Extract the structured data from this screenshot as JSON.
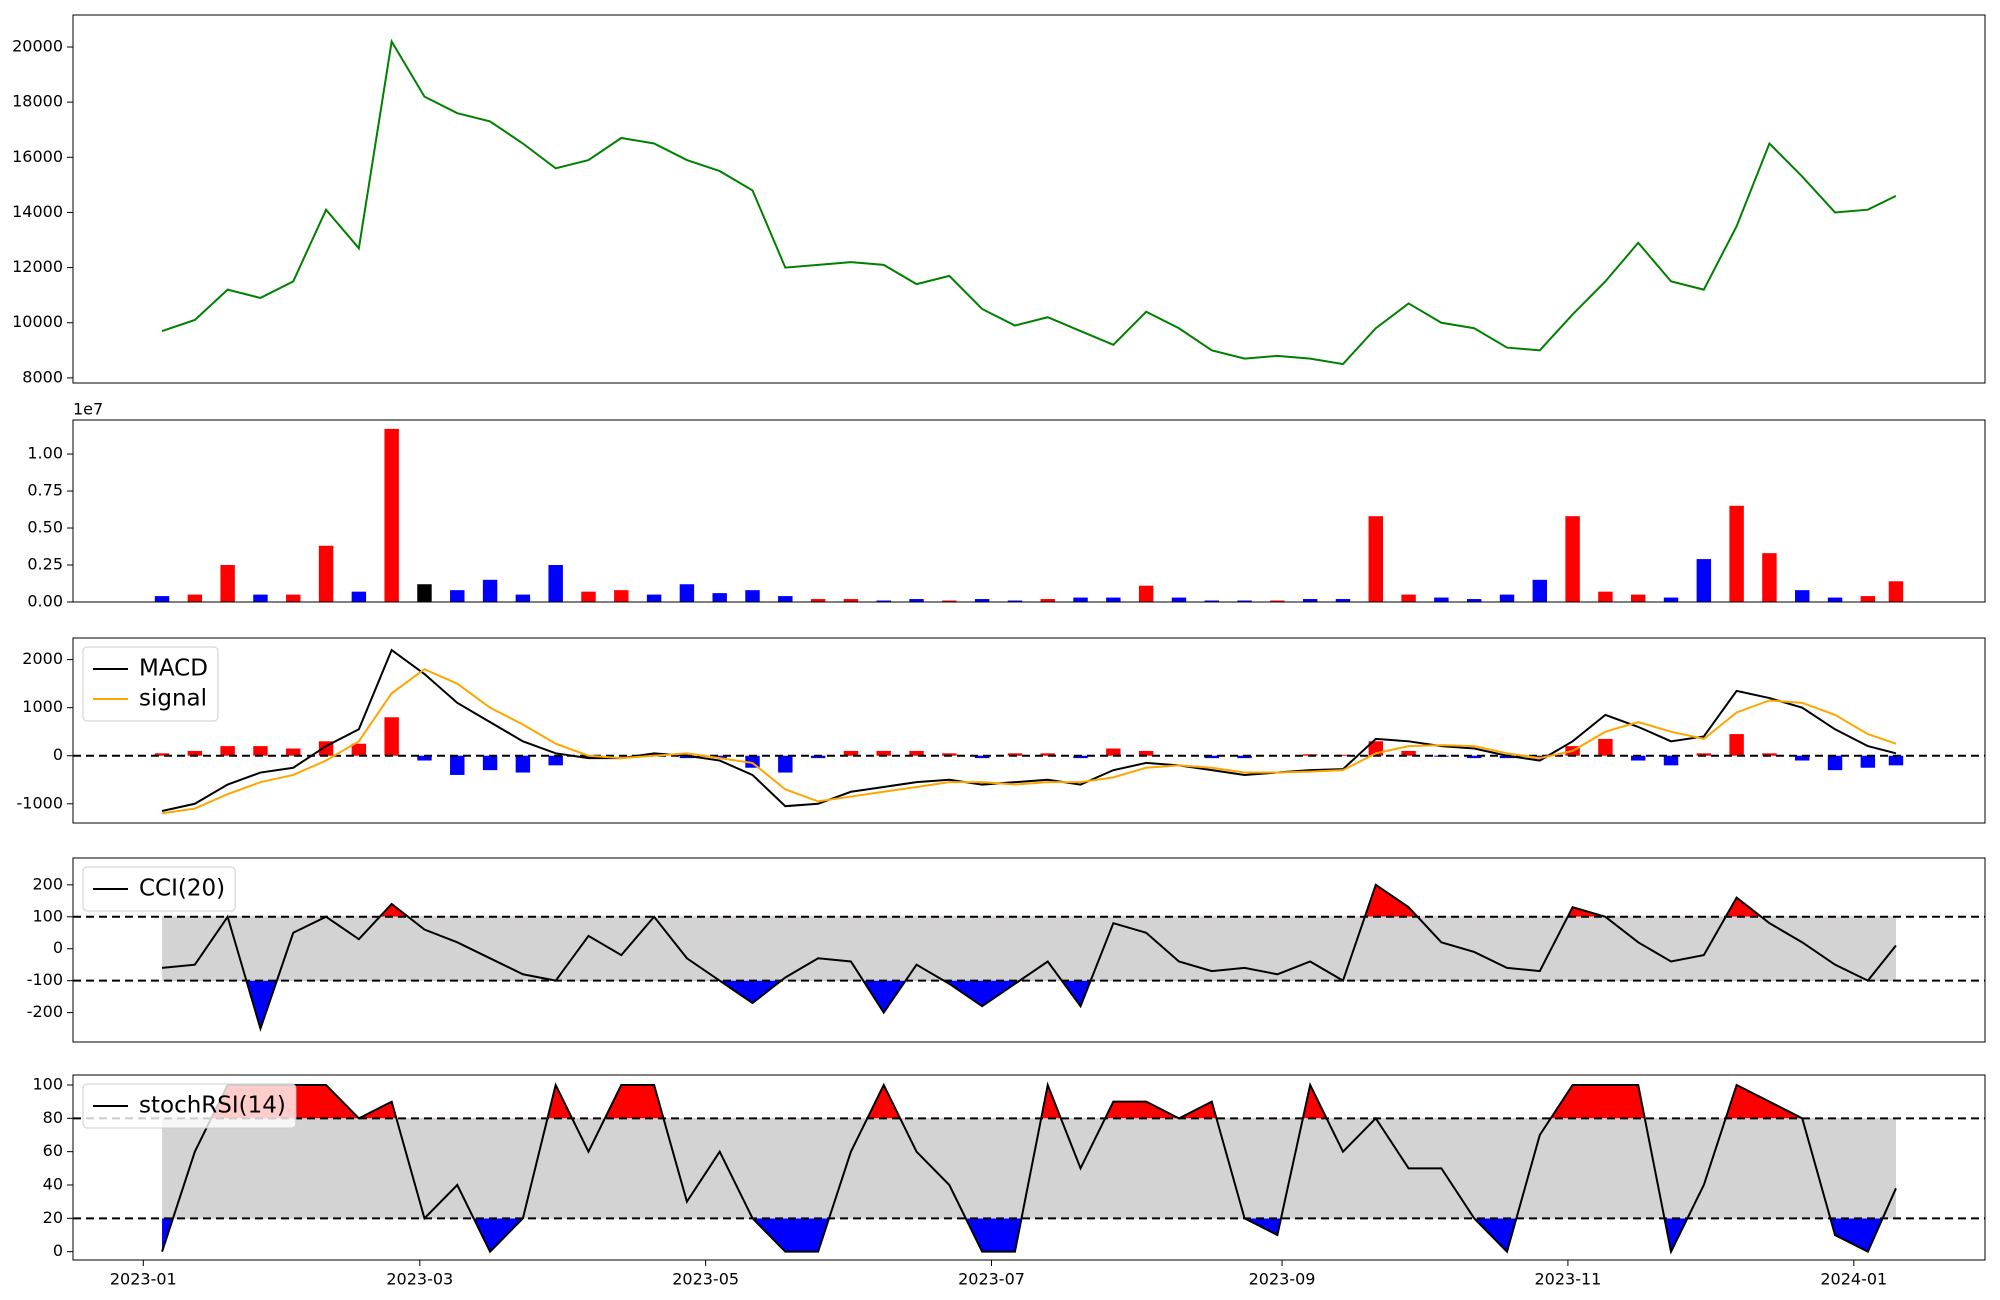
{
  "chart_data": [
    {
      "type": "line",
      "x": [
        "2023-01-05",
        "2023-01-12",
        "2023-01-19",
        "2023-01-26",
        "2023-02-02",
        "2023-02-09",
        "2023-02-16",
        "2023-02-23",
        "2023-03-02",
        "2023-03-09",
        "2023-03-16",
        "2023-03-23",
        "2023-03-30",
        "2023-04-06",
        "2023-04-13",
        "2023-04-20",
        "2023-04-27",
        "2023-05-04",
        "2023-05-11",
        "2023-05-18",
        "2023-05-25",
        "2023-06-01",
        "2023-06-08",
        "2023-06-15",
        "2023-06-22",
        "2023-06-29",
        "2023-07-06",
        "2023-07-13",
        "2023-07-20",
        "2023-07-27",
        "2023-08-03",
        "2023-08-10",
        "2023-08-17",
        "2023-08-24",
        "2023-08-31",
        "2023-09-07",
        "2023-09-14",
        "2023-09-21",
        "2023-09-28",
        "2023-10-05",
        "2023-10-12",
        "2023-10-19",
        "2023-10-26",
        "2023-11-02",
        "2023-11-09",
        "2023-11-16",
        "2023-11-23",
        "2023-11-30",
        "2023-12-07",
        "2023-12-14",
        "2023-12-21",
        "2023-12-28",
        "2024-01-04",
        "2024-01-10"
      ],
      "series": [
        {
          "color": "green",
          "values": [
            9700,
            10100,
            11200,
            10900,
            11500,
            14100,
            12700,
            20200,
            18200,
            17600,
            17300,
            16500,
            15600,
            15900,
            16700,
            16500,
            15900,
            15500,
            14800,
            12000,
            12100,
            12200,
            12100,
            11400,
            11700,
            10500,
            9900,
            10200,
            9700,
            9200,
            10400,
            9800,
            9000,
            8700,
            8800,
            8700,
            8500,
            9800,
            10700,
            10000,
            9800,
            9100,
            9000,
            10300,
            11500,
            12900,
            11500,
            11200,
            13500,
            16500,
            15300,
            14000,
            14100,
            14600
          ]
        }
      ],
      "xlim": [
        "2022-12-17",
        "2024-01-29"
      ],
      "ylim": [
        7815,
        21160
      ],
      "yticks": [
        8000,
        10000,
        12000,
        14000,
        16000,
        18000,
        20000
      ]
    },
    {
      "type": "bar",
      "offset_label": "1e7",
      "x": [
        "2023-01-05",
        "2023-01-12",
        "2023-01-19",
        "2023-01-26",
        "2023-02-02",
        "2023-02-09",
        "2023-02-16",
        "2023-02-23",
        "2023-03-02",
        "2023-03-09",
        "2023-03-16",
        "2023-03-23",
        "2023-03-30",
        "2023-04-06",
        "2023-04-13",
        "2023-04-20",
        "2023-04-27",
        "2023-05-04",
        "2023-05-11",
        "2023-05-18",
        "2023-05-25",
        "2023-06-01",
        "2023-06-08",
        "2023-06-15",
        "2023-06-22",
        "2023-06-29",
        "2023-07-06",
        "2023-07-13",
        "2023-07-20",
        "2023-07-27",
        "2023-08-03",
        "2023-08-10",
        "2023-08-17",
        "2023-08-24",
        "2023-08-31",
        "2023-09-07",
        "2023-09-14",
        "2023-09-21",
        "2023-09-28",
        "2023-10-05",
        "2023-10-12",
        "2023-10-19",
        "2023-10-26",
        "2023-11-02",
        "2023-11-09",
        "2023-11-16",
        "2023-11-23",
        "2023-11-30",
        "2023-12-07",
        "2023-12-14",
        "2023-12-21",
        "2023-12-28",
        "2024-01-04",
        "2024-01-10"
      ],
      "values": [
        0.04,
        0.05,
        0.25,
        0.05,
        0.05,
        0.38,
        0.07,
        1.17,
        0.12,
        0.08,
        0.15,
        0.05,
        0.25,
        0.07,
        0.08,
        0.05,
        0.12,
        0.06,
        0.08,
        0.04,
        0.02,
        0.02,
        0.01,
        0.02,
        0.01,
        0.02,
        0.01,
        0.02,
        0.03,
        0.03,
        0.11,
        0.03,
        0.01,
        0.01,
        0.01,
        0.02,
        0.02,
        0.58,
        0.05,
        0.03,
        0.02,
        0.05,
        0.15,
        0.58,
        0.07,
        0.05,
        0.03,
        0.29,
        0.65,
        0.33,
        0.08,
        0.03,
        0.04,
        0.14
      ],
      "colors": [
        "blue",
        "red",
        "red",
        "blue",
        "red",
        "red",
        "blue",
        "red",
        "black",
        "blue",
        "blue",
        "blue",
        "blue",
        "red",
        "red",
        "blue",
        "blue",
        "blue",
        "blue",
        "blue",
        "red",
        "red",
        "blue",
        "blue",
        "red",
        "blue",
        "blue",
        "red",
        "blue",
        "blue",
        "red",
        "blue",
        "blue",
        "blue",
        "red",
        "blue",
        "blue",
        "red",
        "red",
        "blue",
        "blue",
        "blue",
        "blue",
        "red",
        "red",
        "red",
        "blue",
        "blue",
        "red",
        "red",
        "blue",
        "blue",
        "red",
        "red"
      ],
      "xlim": [
        "2022-12-17",
        "2024-01-29"
      ],
      "ylim": [
        0,
        1.23
      ],
      "yticks": [
        {
          "value": 0,
          "label": "0.00"
        },
        {
          "value": 0.25,
          "label": "0.25"
        },
        {
          "value": 0.5,
          "label": "0.50"
        },
        {
          "value": 0.75,
          "label": "0.75"
        },
        {
          "value": 1,
          "label": "1.00"
        }
      ]
    },
    {
      "type": "macd",
      "x": [
        "2023-01-05",
        "2023-01-12",
        "2023-01-19",
        "2023-01-26",
        "2023-02-02",
        "2023-02-09",
        "2023-02-16",
        "2023-02-23",
        "2023-03-02",
        "2023-03-09",
        "2023-03-16",
        "2023-03-23",
        "2023-03-30",
        "2023-04-06",
        "2023-04-13",
        "2023-04-20",
        "2023-04-27",
        "2023-05-04",
        "2023-05-11",
        "2023-05-18",
        "2023-05-25",
        "2023-06-01",
        "2023-06-08",
        "2023-06-15",
        "2023-06-22",
        "2023-06-29",
        "2023-07-06",
        "2023-07-13",
        "2023-07-20",
        "2023-07-27",
        "2023-08-03",
        "2023-08-10",
        "2023-08-17",
        "2023-08-24",
        "2023-08-31",
        "2023-09-07",
        "2023-09-14",
        "2023-09-21",
        "2023-09-28",
        "2023-10-05",
        "2023-10-12",
        "2023-10-19",
        "2023-10-26",
        "2023-11-02",
        "2023-11-09",
        "2023-11-16",
        "2023-11-23",
        "2023-11-30",
        "2023-12-07",
        "2023-12-14",
        "2023-12-21",
        "2023-12-28",
        "2024-01-04",
        "2024-01-10"
      ],
      "series": [
        {
          "name": "MACD",
          "color": "black",
          "values": [
            -1150,
            -1000,
            -600,
            -350,
            -250,
            200,
            550,
            2200,
            1700,
            1100,
            700,
            300,
            50,
            -50,
            -50,
            50,
            0,
            -100,
            -400,
            -1050,
            -1000,
            -750,
            -650,
            -550,
            -500,
            -600,
            -550,
            -500,
            -600,
            -300,
            -150,
            -200,
            -300,
            -400,
            -350,
            -300,
            -280,
            350,
            300,
            200,
            150,
            0,
            -100,
            300,
            850,
            600,
            300,
            400,
            1350,
            1200,
            1000,
            550,
            200,
            50
          ]
        },
        {
          "name": "signal",
          "color": "orange",
          "values": [
            -1200,
            -1100,
            -800,
            -550,
            -400,
            -100,
            300,
            1300,
            1800,
            1500,
            1000,
            650,
            250,
            0,
            -50,
            0,
            50,
            -50,
            -150,
            -700,
            -950,
            -850,
            -750,
            -650,
            -550,
            -550,
            -600,
            -550,
            -550,
            -450,
            -250,
            -200,
            -250,
            -350,
            -350,
            -330,
            -300,
            50,
            200,
            220,
            200,
            50,
            -50,
            100,
            500,
            700,
            500,
            350,
            900,
            1150,
            1100,
            850,
            450,
            250
          ]
        }
      ],
      "histogram": {
        "colors": [
          "red",
          "blue"
        ],
        "values": [
          50,
          100,
          200,
          200,
          150,
          300,
          250,
          800,
          -100,
          -400,
          -300,
          -350,
          -200,
          -50,
          0,
          50,
          -50,
          -50,
          -250,
          -350,
          -50,
          100,
          100,
          100,
          50,
          -50,
          50,
          50,
          -50,
          150,
          100,
          0,
          -50,
          -50,
          0,
          30,
          20,
          300,
          100,
          -20,
          -50,
          -50,
          -50,
          200,
          350,
          -100,
          -200,
          50,
          450,
          50,
          -100,
          -300,
          -250,
          -200
        ]
      },
      "hline": 0,
      "legend": "upper left",
      "xlim": [
        "2022-12-17",
        "2024-01-29"
      ],
      "ylim": [
        -1400,
        2450
      ],
      "yticks": [
        -1000,
        0,
        1000,
        2000
      ]
    },
    {
      "type": "band",
      "x": [
        "2023-01-05",
        "2023-01-12",
        "2023-01-19",
        "2023-01-26",
        "2023-02-02",
        "2023-02-09",
        "2023-02-16",
        "2023-02-23",
        "2023-03-02",
        "2023-03-09",
        "2023-03-16",
        "2023-03-23",
        "2023-03-30",
        "2023-04-06",
        "2023-04-13",
        "2023-04-20",
        "2023-04-27",
        "2023-05-04",
        "2023-05-11",
        "2023-05-18",
        "2023-05-25",
        "2023-06-01",
        "2023-06-08",
        "2023-06-15",
        "2023-06-22",
        "2023-06-29",
        "2023-07-06",
        "2023-07-13",
        "2023-07-20",
        "2023-07-27",
        "2023-08-03",
        "2023-08-10",
        "2023-08-17",
        "2023-08-24",
        "2023-08-31",
        "2023-09-07",
        "2023-09-14",
        "2023-09-21",
        "2023-09-28",
        "2023-10-05",
        "2023-10-12",
        "2023-10-19",
        "2023-10-26",
        "2023-11-02",
        "2023-11-09",
        "2023-11-16",
        "2023-11-23",
        "2023-11-30",
        "2023-12-07",
        "2023-12-14",
        "2023-12-21",
        "2023-12-28",
        "2024-01-04",
        "2024-01-10"
      ],
      "series": [
        {
          "name": "CCI(20)",
          "color": "black",
          "values": [
            -60,
            -50,
            100,
            -250,
            50,
            100,
            30,
            140,
            60,
            20,
            -30,
            -80,
            -100,
            40,
            -20,
            100,
            -30,
            -100,
            -170,
            -90,
            -30,
            -40,
            -200,
            -50,
            -110,
            -180,
            -110,
            -40,
            -180,
            80,
            50,
            -40,
            -70,
            -60,
            -80,
            -40,
            -100,
            200,
            130,
            20,
            -10,
            -60,
            -70,
            130,
            100,
            20,
            -40,
            -20,
            160,
            80,
            20,
            -50,
            -100,
            10
          ]
        }
      ],
      "levels": [
        -100,
        100
      ],
      "band_color": "lightgray",
      "above_color": "red",
      "below_color": "blue",
      "legend": "upper left",
      "xlim": [
        "2022-12-17",
        "2024-01-29"
      ],
      "ylim": [
        -292,
        284
      ],
      "yticks": [
        -200,
        -100,
        0,
        100,
        200
      ]
    },
    {
      "type": "band",
      "x": [
        "2023-01-05",
        "2023-01-12",
        "2023-01-19",
        "2023-01-26",
        "2023-02-02",
        "2023-02-09",
        "2023-02-16",
        "2023-02-23",
        "2023-03-02",
        "2023-03-09",
        "2023-03-16",
        "2023-03-23",
        "2023-03-30",
        "2023-04-06",
        "2023-04-13",
        "2023-04-20",
        "2023-04-27",
        "2023-05-04",
        "2023-05-11",
        "2023-05-18",
        "2023-05-25",
        "2023-06-01",
        "2023-06-08",
        "2023-06-15",
        "2023-06-22",
        "2023-06-29",
        "2023-07-06",
        "2023-07-13",
        "2023-07-20",
        "2023-07-27",
        "2023-08-03",
        "2023-08-10",
        "2023-08-17",
        "2023-08-24",
        "2023-08-31",
        "2023-09-07",
        "2023-09-14",
        "2023-09-21",
        "2023-09-28",
        "2023-10-05",
        "2023-10-12",
        "2023-10-19",
        "2023-10-26",
        "2023-11-02",
        "2023-11-09",
        "2023-11-16",
        "2023-11-23",
        "2023-11-30",
        "2023-12-07",
        "2023-12-14",
        "2023-12-21",
        "2023-12-28",
        "2024-01-04",
        "2024-01-10"
      ],
      "series": [
        {
          "name": "stochRSI(14)",
          "color": "black",
          "values": [
            0,
            60,
            100,
            100,
            100,
            100,
            80,
            90,
            20,
            40,
            0,
            20,
            100,
            60,
            100,
            100,
            30,
            60,
            20,
            0,
            0,
            60,
            100,
            60,
            40,
            0,
            0,
            100,
            50,
            90,
            90,
            80,
            90,
            20,
            10,
            100,
            60,
            80,
            50,
            50,
            20,
            0,
            70,
            100,
            100,
            100,
            0,
            40,
            100,
            90,
            80,
            10,
            0,
            38
          ]
        }
      ],
      "levels": [
        20,
        80
      ],
      "band_color": "lightgray",
      "above_color": "red",
      "below_color": "blue",
      "legend": "upper left",
      "xlim": [
        "2022-12-17",
        "2024-01-29"
      ],
      "ylim": [
        -5,
        106
      ],
      "yticks": [
        0,
        20,
        40,
        60,
        80,
        100
      ],
      "xticks": [
        {
          "value": "2023-01-01",
          "label": "2023-01"
        },
        {
          "value": "2023-03-01",
          "label": "2023-03"
        },
        {
          "value": "2023-05-01",
          "label": "2023-05"
        },
        {
          "value": "2023-07-01",
          "label": "2023-07"
        },
        {
          "value": "2023-09-01",
          "label": "2023-09"
        },
        {
          "value": "2023-11-01",
          "label": "2023-11"
        },
        {
          "value": "2024-01-01",
          "label": "2024-01"
        }
      ]
    }
  ]
}
